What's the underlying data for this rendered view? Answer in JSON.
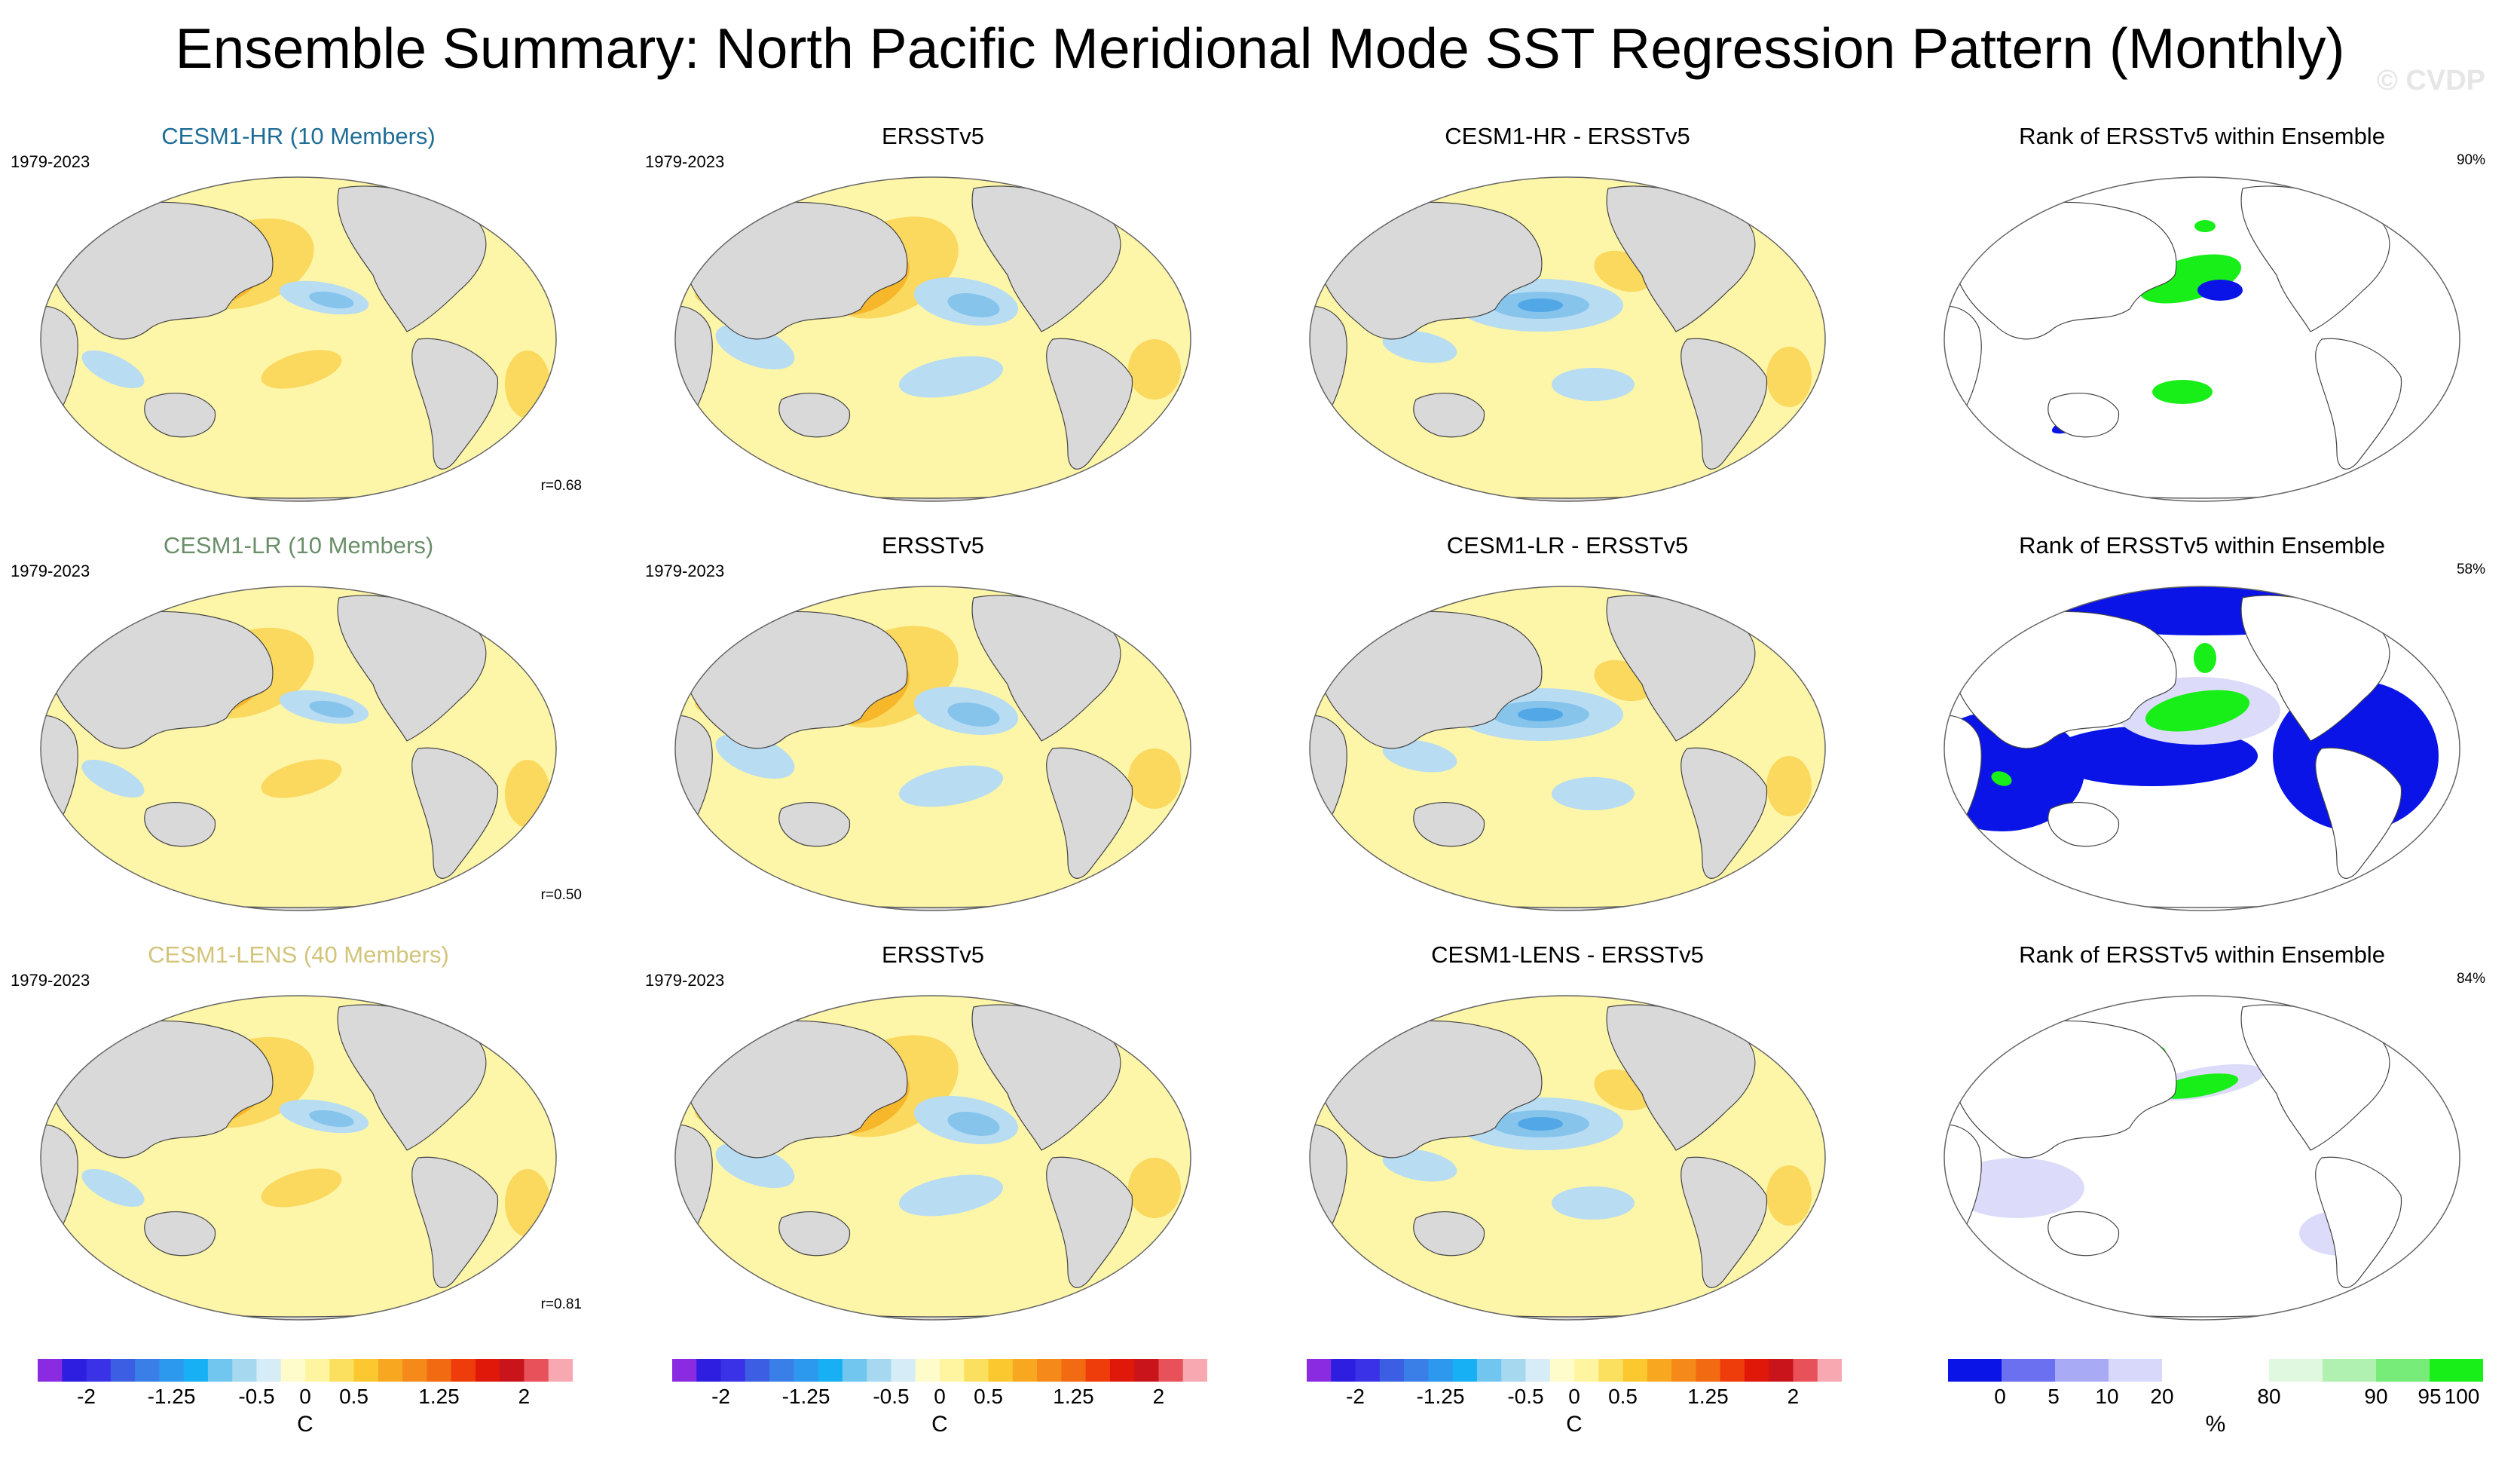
{
  "title": "Ensemble Summary: North Pacific Meridional Mode SST Regression Pattern (Monthly)",
  "watermark": "© CVDP",
  "colors": {
    "ocean_neutral": "#fdf6a8",
    "warm1": "#fbd85e",
    "warm2": "#f6b72b",
    "cool1": "#b8dcf2",
    "cool2": "#86c4ec",
    "cool3": "#52a8e6",
    "land": "#d9d9d9",
    "rank_low": "#0a14e6",
    "rank_mid_low": "#dcdcfa",
    "rank_high": "#d8f8d8",
    "rank_top": "#18ee18"
  },
  "rows": [
    {
      "model": "CESM1-HR (10 Members)",
      "model_color": "#1f6d96",
      "period": "1979-2023",
      "corr": "r=0.68",
      "obs_title": "ERSSTv5",
      "obs_period": "1979-2023",
      "diff_title": "CESM1-HR - ERSSTv5",
      "rank_title": "Rank of ERSSTv5 within Ensemble",
      "rank_pct": "90%"
    },
    {
      "model": "CESM1-LR (10 Members)",
      "model_color": "#6a8f6a",
      "period": "1979-2023",
      "corr": "r=0.50",
      "obs_title": "ERSSTv5",
      "obs_period": "1979-2023",
      "diff_title": "CESM1-LR - ERSSTv5",
      "rank_title": "Rank of ERSSTv5 within Ensemble",
      "rank_pct": "58%"
    },
    {
      "model": "CESM1-LENS (40 Members)",
      "model_color": "#d2c47a",
      "period": "1979-2023",
      "corr": "r=0.81",
      "obs_title": "ERSSTv5",
      "obs_period": "1979-2023",
      "diff_title": "CESM1-LENS - ERSSTv5",
      "rank_title": "Rank of ERSSTv5 within Ensemble",
      "rank_pct": "84%"
    }
  ],
  "colorbar_sst": {
    "colors": [
      "#8a2be2",
      "#2d1ee0",
      "#3a32e6",
      "#3c5ee2",
      "#3a7ee8",
      "#2c98ee",
      "#18b0f4",
      "#70c6ee",
      "#a6d8f0",
      "#d6ecf6",
      "#fffccc",
      "#fff4a0",
      "#fbe060",
      "#fbc830",
      "#f8a820",
      "#f58a1a",
      "#f26a12",
      "#ee3c0a",
      "#e0180a",
      "#c8141a",
      "#e8505a",
      "#f8a8b0"
    ],
    "ticks": [
      "-2",
      "-1.25",
      "-0.5",
      "0",
      "0.5",
      "1.25",
      "2"
    ],
    "unit": "C"
  },
  "colorbar_rank": {
    "colors": [
      "#0a14e6",
      "#6a70f0",
      "#a8aaf6",
      "#d8d8fa",
      "#ffffff",
      "#ffffff",
      "#e0f8e0",
      "#b0f0b0",
      "#78ec78",
      "#18ee18"
    ],
    "ticks": [
      "0",
      "5",
      "10",
      "20",
      "80",
      "90",
      "95",
      "100"
    ],
    "unit": "%"
  }
}
